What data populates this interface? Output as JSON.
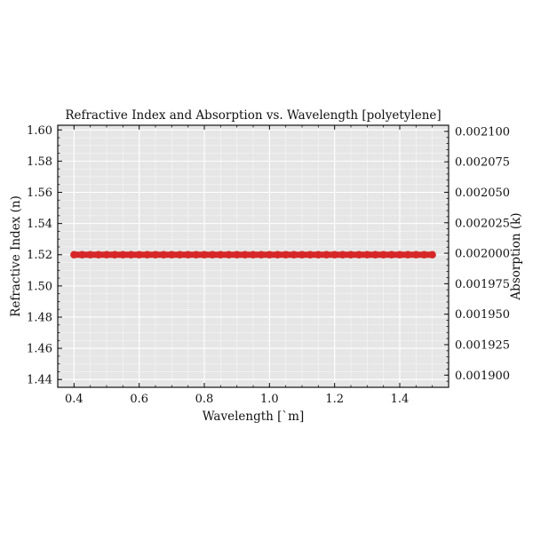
{
  "chart_data": {
    "type": "line",
    "title": "Refractive Index and Absorption vs. Wavelength [polyetylene]",
    "xlabel": "Wavelength [`m]",
    "ylabel_left": "Refractive Index (n)",
    "ylabel_right": "Absorption (k)",
    "xlim": [
      0.35,
      1.55
    ],
    "ylim_left": [
      1.435,
      1.603
    ],
    "ylim_right": [
      0.00189,
      0.002105
    ],
    "x_ticks": [
      0.4,
      0.6,
      0.8,
      1.0,
      1.2,
      1.4
    ],
    "x_tick_labels": [
      "0.4",
      "0.6",
      "0.8",
      "1.0",
      "1.2",
      "1.4"
    ],
    "y_left_ticks": [
      1.44,
      1.46,
      1.48,
      1.5,
      1.52,
      1.54,
      1.56,
      1.58,
      1.6
    ],
    "y_left_tick_labels": [
      "1.44",
      "1.46",
      "1.48",
      "1.50",
      "1.52",
      "1.54",
      "1.56",
      "1.58",
      "1.60"
    ],
    "y_right_ticks": [
      0.0019,
      0.001925,
      0.00195,
      0.001975,
      0.002,
      0.002025,
      0.00205,
      0.002075,
      0.0021
    ],
    "y_right_tick_labels": [
      "0.001900",
      "0.001925",
      "0.001950",
      "0.001975",
      "0.002000",
      "0.002025",
      "0.002050",
      "0.002075",
      "0.002100"
    ],
    "grid": true,
    "series": [
      {
        "axis": "left",
        "color": "#d62728",
        "x": [
          0.4,
          0.425,
          0.45,
          0.475,
          0.5,
          0.525,
          0.55,
          0.575,
          0.6,
          0.625,
          0.65,
          0.675,
          0.7,
          0.725,
          0.75,
          0.775,
          0.8,
          0.825,
          0.85,
          0.875,
          0.9,
          0.925,
          0.95,
          0.975,
          1.0,
          1.025,
          1.05,
          1.075,
          1.1,
          1.125,
          1.15,
          1.175,
          1.2,
          1.225,
          1.25,
          1.275,
          1.3,
          1.325,
          1.35,
          1.375,
          1.4,
          1.425,
          1.45,
          1.475,
          1.5
        ],
        "y": [
          1.52,
          1.52,
          1.52,
          1.52,
          1.52,
          1.52,
          1.52,
          1.52,
          1.52,
          1.52,
          1.52,
          1.52,
          1.52,
          1.52,
          1.52,
          1.52,
          1.52,
          1.52,
          1.52,
          1.52,
          1.52,
          1.52,
          1.52,
          1.52,
          1.52,
          1.52,
          1.52,
          1.52,
          1.52,
          1.52,
          1.52,
          1.52,
          1.52,
          1.52,
          1.52,
          1.52,
          1.52,
          1.52,
          1.52,
          1.52,
          1.52,
          1.52,
          1.52,
          1.52,
          1.52
        ]
      }
    ]
  }
}
